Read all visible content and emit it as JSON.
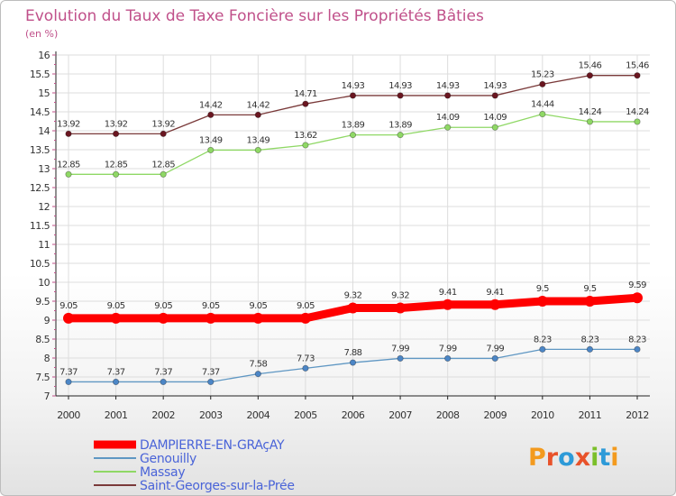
{
  "brand": {
    "logo_text": "Proxiti"
  },
  "colors": {
    "title": "#c0508a",
    "axis": "#333333",
    "grid": "#dddddd",
    "legend_text": "#4a64d8"
  },
  "chart_data": {
    "type": "line",
    "title": "Evolution du Taux de Taxe Foncière sur les Propriétés Bâties",
    "subtitle": "(en %)",
    "xlabel": "",
    "ylabel": "(en %)",
    "ylim": [
      7,
      16
    ],
    "yticks": [
      "7",
      "7.5",
      "8",
      "8.5",
      "9",
      "9.5",
      "10",
      "10.5",
      "11",
      "11.5",
      "12",
      "12.5",
      "13",
      "13.5",
      "14",
      "14.5",
      "15",
      "15.5",
      "16"
    ],
    "categories": [
      "2000",
      "2001",
      "2002",
      "2003",
      "2004",
      "2005",
      "2006",
      "2007",
      "2008",
      "2009",
      "2010",
      "2011",
      "2012"
    ],
    "grid": true,
    "series": [
      {
        "name": "DAMPIERRE-EN-GRAçAY",
        "color": "#ff0000",
        "marker_color": "#ff0000",
        "emphasis": true,
        "values": [
          9.05,
          9.05,
          9.05,
          9.05,
          9.05,
          9.05,
          9.32,
          9.32,
          9.41,
          9.41,
          9.5,
          9.5,
          9.59
        ],
        "labels": [
          "9.05",
          "9.05",
          "9.05",
          "9.05",
          "9.05",
          "9.05",
          "9.32",
          "9.32",
          "9.41",
          "9.41",
          "9.5",
          "9.5",
          "9.59"
        ]
      },
      {
        "name": "Genouilly",
        "color": "#5f97c3",
        "marker_color": "#4c86c6",
        "emphasis": false,
        "values": [
          7.37,
          7.37,
          7.37,
          7.37,
          7.58,
          7.73,
          7.88,
          7.99,
          7.99,
          7.99,
          8.23,
          8.23,
          8.23
        ],
        "labels": [
          "7.37",
          "7.37",
          "7.37",
          "7.37",
          "7.58",
          "7.73",
          "7.88",
          "7.99",
          "7.99",
          "7.99",
          "8.23",
          "8.23",
          "8.23"
        ]
      },
      {
        "name": "Massay",
        "color": "#8fd865",
        "marker_color": "#8fd865",
        "emphasis": false,
        "values": [
          12.85,
          12.85,
          12.85,
          13.49,
          13.49,
          13.62,
          13.89,
          13.89,
          14.09,
          14.09,
          14.44,
          14.24,
          14.24
        ],
        "labels": [
          "12.85",
          "12.85",
          "12.85",
          "13.49",
          "13.49",
          "13.62",
          "13.89",
          "13.89",
          "14.09",
          "14.09",
          "14.44",
          "14.24",
          "14.24"
        ]
      },
      {
        "name": "Saint-Georges-sur-la-Prée",
        "color": "#7a3a3a",
        "marker_color": "#6a1620",
        "emphasis": false,
        "values": [
          13.92,
          13.92,
          13.92,
          14.42,
          14.42,
          14.71,
          14.93,
          14.93,
          14.93,
          14.93,
          15.23,
          15.46,
          15.46
        ],
        "labels": [
          "13.92",
          "13.92",
          "13.92",
          "14.42",
          "14.42",
          "14.71",
          "14.93",
          "14.93",
          "14.93",
          "14.93",
          "15.23",
          "15.46",
          "15.46"
        ]
      }
    ],
    "legend": "bottom-left"
  }
}
